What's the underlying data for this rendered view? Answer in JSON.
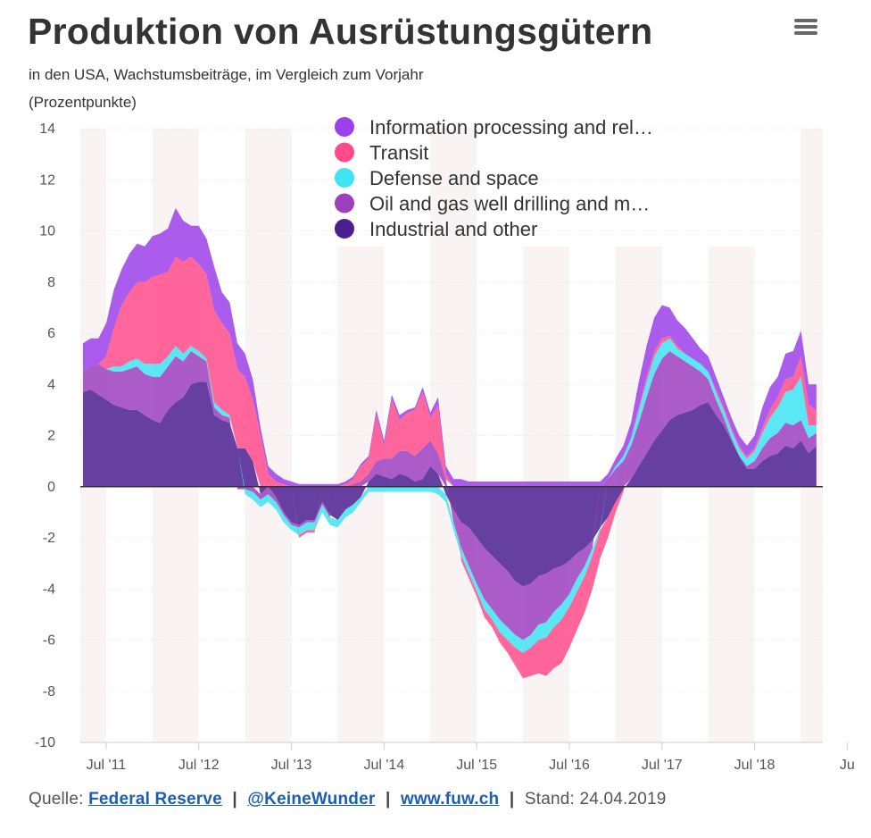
{
  "header": {
    "title": "Produktion von Ausrüstungsgütern",
    "subtitle_line1": "in den USA, Wachstumsbeiträge, im Vergleich zum Vorjahr",
    "subtitle_line2": "(Prozentpunkte)",
    "menu_icon": "hamburger-menu-icon"
  },
  "footer": {
    "source_label": "Quelle:",
    "link1": "Federal Reserve",
    "link2": "@KeineWunder",
    "link3": "www.fuw.ch",
    "separator": "|",
    "date_label": "Stand: 24.04.2019"
  },
  "chart_data": {
    "type": "area",
    "stacked": true,
    "x_unit": "month",
    "x": [
      "2011-04",
      "2011-05",
      "2011-06",
      "2011-07",
      "2011-08",
      "2011-09",
      "2011-10",
      "2011-11",
      "2011-12",
      "2012-01",
      "2012-02",
      "2012-03",
      "2012-04",
      "2012-05",
      "2012-06",
      "2012-07",
      "2012-08",
      "2012-09",
      "2012-10",
      "2012-11",
      "2012-12",
      "2013-01",
      "2013-02",
      "2013-03",
      "2013-04",
      "2013-05",
      "2013-06",
      "2013-07",
      "2013-08",
      "2013-09",
      "2013-10",
      "2013-11",
      "2013-12",
      "2014-01",
      "2014-02",
      "2014-03",
      "2014-04",
      "2014-05",
      "2014-06",
      "2014-07",
      "2014-08",
      "2014-09",
      "2014-10",
      "2014-11",
      "2014-12",
      "2015-01",
      "2015-02",
      "2015-03",
      "2015-04",
      "2015-05",
      "2015-06",
      "2015-07",
      "2015-08",
      "2015-09",
      "2015-10",
      "2015-11",
      "2015-12",
      "2016-01",
      "2016-02",
      "2016-03",
      "2016-04",
      "2016-05",
      "2016-06",
      "2016-07",
      "2016-08",
      "2016-09",
      "2016-10",
      "2016-11",
      "2016-12",
      "2017-01",
      "2017-02",
      "2017-03",
      "2017-04",
      "2017-05",
      "2017-06",
      "2017-07",
      "2017-08",
      "2017-09",
      "2017-10",
      "2017-11",
      "2017-12",
      "2018-01",
      "2018-02",
      "2018-03",
      "2018-04",
      "2018-05",
      "2018-06",
      "2018-07",
      "2018-08",
      "2018-09",
      "2018-10",
      "2018-11",
      "2018-12",
      "2019-01",
      "2019-02",
      "2019-03"
    ],
    "x_tick_labels": [
      "Jul '11",
      "Jul '12",
      "Jul '13",
      "Jul '14",
      "Jul '15",
      "Jul '16",
      "Jul '17",
      "Jul '18",
      "Ju"
    ],
    "ylim": [
      -10,
      14
    ],
    "y_ticks": [
      -10,
      -8,
      -6,
      -4,
      -2,
      0,
      2,
      4,
      6,
      8,
      10,
      12,
      14
    ],
    "legend_position": "top-right",
    "shaded_bands": "alternate years (Jan–Jun)",
    "series": [
      {
        "name": "Industrial and other",
        "color": "#4b1f91",
        "values": [
          3.7,
          3.8,
          3.6,
          3.4,
          3.2,
          3.1,
          3.0,
          3.0,
          2.8,
          2.6,
          2.5,
          3.0,
          3.3,
          3.5,
          4.0,
          4.1,
          4.1,
          2.8,
          2.6,
          2.5,
          1.5,
          1.5,
          1.0,
          -0.3,
          0.0,
          -0.4,
          -1.0,
          -1.4,
          -1.5,
          -1.3,
          -1.3,
          -0.6,
          -1.1,
          -1.3,
          -0.9,
          -0.7,
          -0.4,
          0.2,
          0.5,
          0.4,
          0.3,
          0.5,
          0.4,
          0.2,
          0.3,
          0.8,
          0.5,
          -0.3,
          -0.9,
          -1.4,
          -1.6,
          -2.0,
          -2.4,
          -2.7,
          -3.0,
          -3.3,
          -3.7,
          -3.9,
          -3.8,
          -3.5,
          -3.4,
          -3.2,
          -3.1,
          -2.9,
          -2.6,
          -2.4,
          -2.1,
          -1.6,
          -1.2,
          -0.6,
          -0.1,
          0.3,
          0.8,
          1.3,
          1.8,
          2.2,
          2.6,
          2.8,
          2.9,
          3.0,
          3.2,
          3.3,
          2.8,
          2.4,
          1.8,
          1.2,
          0.7,
          0.7,
          1.0,
          1.2,
          1.3,
          1.6,
          1.5,
          1.8,
          1.3,
          1.6
        ],
        "note": "approximate"
      },
      {
        "name": "Oil and gas well drilling and m…",
        "color": "#9c3fbf",
        "values": [
          0.8,
          0.9,
          1.2,
          1.2,
          1.3,
          1.4,
          1.6,
          1.7,
          1.6,
          1.7,
          1.8,
          1.7,
          1.8,
          1.4,
          1.3,
          1.0,
          0.8,
          0.3,
          0.2,
          0.2,
          -0.1,
          -0.1,
          -0.2,
          -0.2,
          -0.3,
          -0.2,
          -0.1,
          -0.1,
          -0.1,
          -0.1,
          -0.1,
          -0.1,
          -0.1,
          0.0,
          0.0,
          0.1,
          0.2,
          0.3,
          0.5,
          0.7,
          0.8,
          0.9,
          1.0,
          1.0,
          1.2,
          1.0,
          0.8,
          0.3,
          -0.5,
          -1.0,
          -1.5,
          -1.8,
          -2.0,
          -2.1,
          -2.2,
          -2.2,
          -2.1,
          -2.1,
          -2.0,
          -1.9,
          -1.9,
          -1.7,
          -1.5,
          -1.3,
          -1.0,
          -0.7,
          -0.3,
          0.0,
          0.3,
          0.7,
          1.0,
          1.3,
          1.7,
          2.2,
          2.6,
          2.8,
          2.7,
          2.3,
          2.0,
          1.7,
          1.3,
          0.9,
          0.6,
          0.3,
          0.1,
          0.0,
          0.1,
          0.3,
          0.5,
          0.7,
          0.8,
          0.9,
          0.9,
          0.8,
          0.6,
          0.5
        ],
        "note": "approximate"
      },
      {
        "name": "Defense and space",
        "color": "#3fe3f2",
        "values": [
          0.0,
          0.0,
          0.0,
          0.0,
          0.2,
          0.2,
          0.3,
          0.3,
          0.4,
          0.5,
          0.5,
          0.4,
          0.4,
          0.3,
          0.2,
          0.2,
          0.1,
          0.2,
          0.2,
          0.1,
          0.0,
          -0.2,
          -0.3,
          -0.3,
          -0.3,
          -0.3,
          -0.3,
          -0.2,
          -0.3,
          -0.3,
          -0.3,
          -0.3,
          -0.3,
          -0.3,
          -0.3,
          -0.3,
          -0.2,
          -0.2,
          -0.2,
          -0.2,
          -0.2,
          -0.2,
          -0.2,
          -0.2,
          -0.2,
          -0.2,
          -0.3,
          -0.3,
          -0.3,
          -0.3,
          -0.3,
          -0.3,
          -0.4,
          -0.4,
          -0.5,
          -0.5,
          -0.5,
          -0.5,
          -0.5,
          -0.6,
          -0.6,
          -0.6,
          -0.6,
          -0.5,
          -0.5,
          -0.4,
          -0.3,
          -0.1,
          0.0,
          0.1,
          0.2,
          0.3,
          0.5,
          0.6,
          0.7,
          0.6,
          0.5,
          0.3,
          0.3,
          0.3,
          0.3,
          0.3,
          0.3,
          0.3,
          0.3,
          0.3,
          0.3,
          0.4,
          0.6,
          0.8,
          1.0,
          1.2,
          1.4,
          1.7,
          0.5,
          0.3
        ],
        "note": "approximate"
      },
      {
        "name": "Transit",
        "color": "#ff4b8b",
        "values": [
          0.0,
          0.0,
          0.0,
          0.5,
          1.5,
          2.4,
          2.7,
          3.0,
          3.2,
          3.4,
          3.5,
          3.3,
          3.5,
          3.6,
          3.5,
          3.4,
          3.3,
          3.6,
          3.4,
          3.2,
          3.1,
          2.8,
          2.4,
          2.0,
          0.5,
          0.2,
          0.1,
          0.0,
          -0.1,
          -0.1,
          -0.1,
          0.0,
          0.0,
          0.0,
          0.1,
          0.2,
          0.6,
          0.6,
          1.8,
          0.5,
          2.3,
          1.2,
          1.5,
          1.8,
          2.2,
          0.9,
          1.9,
          0.2,
          0.0,
          -0.2,
          -0.2,
          -0.2,
          -0.3,
          -0.3,
          -0.4,
          -0.5,
          -0.7,
          -1.0,
          -1.1,
          -1.3,
          -1.5,
          -1.6,
          -1.7,
          -1.6,
          -1.5,
          -1.4,
          -1.3,
          -1.1,
          -0.8,
          -0.4,
          -0.1,
          0.0,
          0.1,
          0.2,
          0.2,
          0.2,
          0.1,
          0.1,
          0.0,
          0.0,
          0.0,
          0.0,
          0.1,
          0.1,
          0.1,
          0.1,
          0.1,
          0.1,
          0.2,
          0.3,
          0.4,
          0.5,
          0.5,
          0.8,
          0.8,
          0.6
        ],
        "note": "approximate"
      },
      {
        "name": "Information processing and rel…",
        "color": "#9b40ea",
        "values": [
          1.1,
          1.1,
          1.0,
          1.3,
          1.5,
          1.4,
          1.5,
          1.5,
          1.4,
          1.6,
          1.6,
          1.7,
          1.9,
          1.6,
          1.2,
          1.5,
          1.4,
          1.7,
          1.2,
          1.2,
          1.0,
          0.9,
          0.8,
          0.3,
          0.3,
          0.3,
          0.2,
          0.2,
          0.1,
          0.1,
          0.1,
          0.1,
          0.1,
          0.1,
          0.1,
          0.1,
          0.1,
          0.1,
          0.2,
          0.2,
          0.2,
          0.2,
          0.1,
          0.1,
          0.2,
          0.2,
          0.3,
          0.3,
          0.3,
          0.3,
          0.2,
          0.2,
          0.2,
          0.2,
          0.2,
          0.2,
          0.2,
          0.2,
          0.2,
          0.2,
          0.2,
          0.2,
          0.2,
          0.2,
          0.2,
          0.2,
          0.2,
          0.2,
          0.2,
          0.3,
          0.4,
          0.6,
          1.0,
          1.2,
          1.3,
          1.3,
          1.1,
          1.0,
          1.0,
          0.8,
          0.6,
          0.6,
          0.5,
          0.4,
          0.4,
          0.4,
          0.4,
          0.5,
          0.8,
          0.9,
          0.8,
          1.0,
          1.0,
          1.0,
          0.8,
          1.0
        ],
        "note": "approximate"
      }
    ]
  }
}
